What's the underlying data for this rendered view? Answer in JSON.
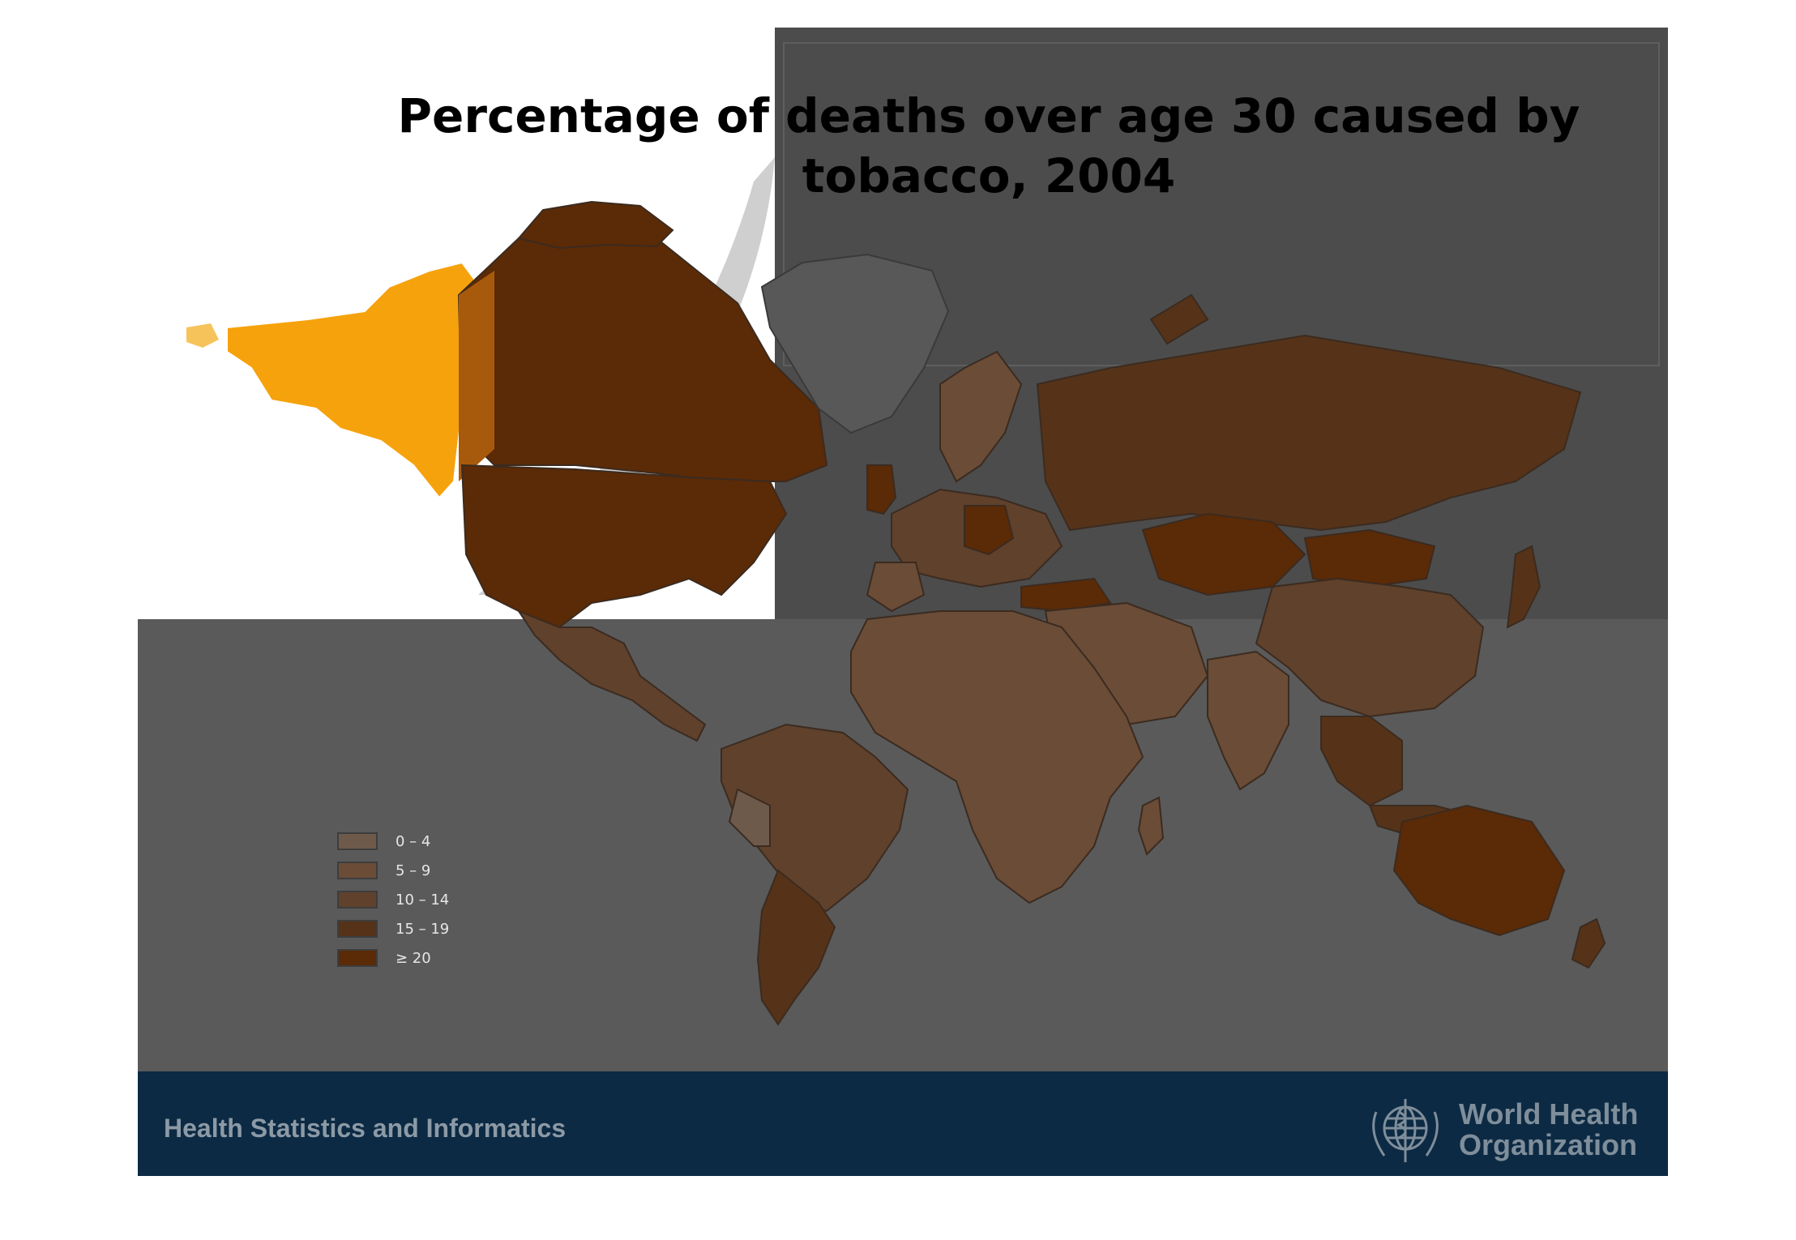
{
  "slide": {
    "title": "Percentage of deaths over age 30 caused by tobacco, 2004"
  },
  "legend": {
    "items": [
      {
        "label": "0 – 4",
        "color": "#6e5a4b"
      },
      {
        "label": "5 – 9",
        "color": "#6a4c37"
      },
      {
        "label": "10 – 14",
        "color": "#5f412c"
      },
      {
        "label": "15 – 19",
        "color": "#563318"
      },
      {
        "label": "≥ 20",
        "color": "#5b2a06"
      }
    ]
  },
  "colors": {
    "slide_bg": "#5a5a5a",
    "ocean_dark": "#4c4c4c",
    "alaska": "#f6a20c",
    "greenland": "#585858",
    "footer_bg": "#0c2a43"
  },
  "footer": {
    "left_text": "Health Statistics and Informatics",
    "org_name_line1": "World Health",
    "org_name_line2": "Organization",
    "logo_icon": "who-emblem-icon"
  }
}
